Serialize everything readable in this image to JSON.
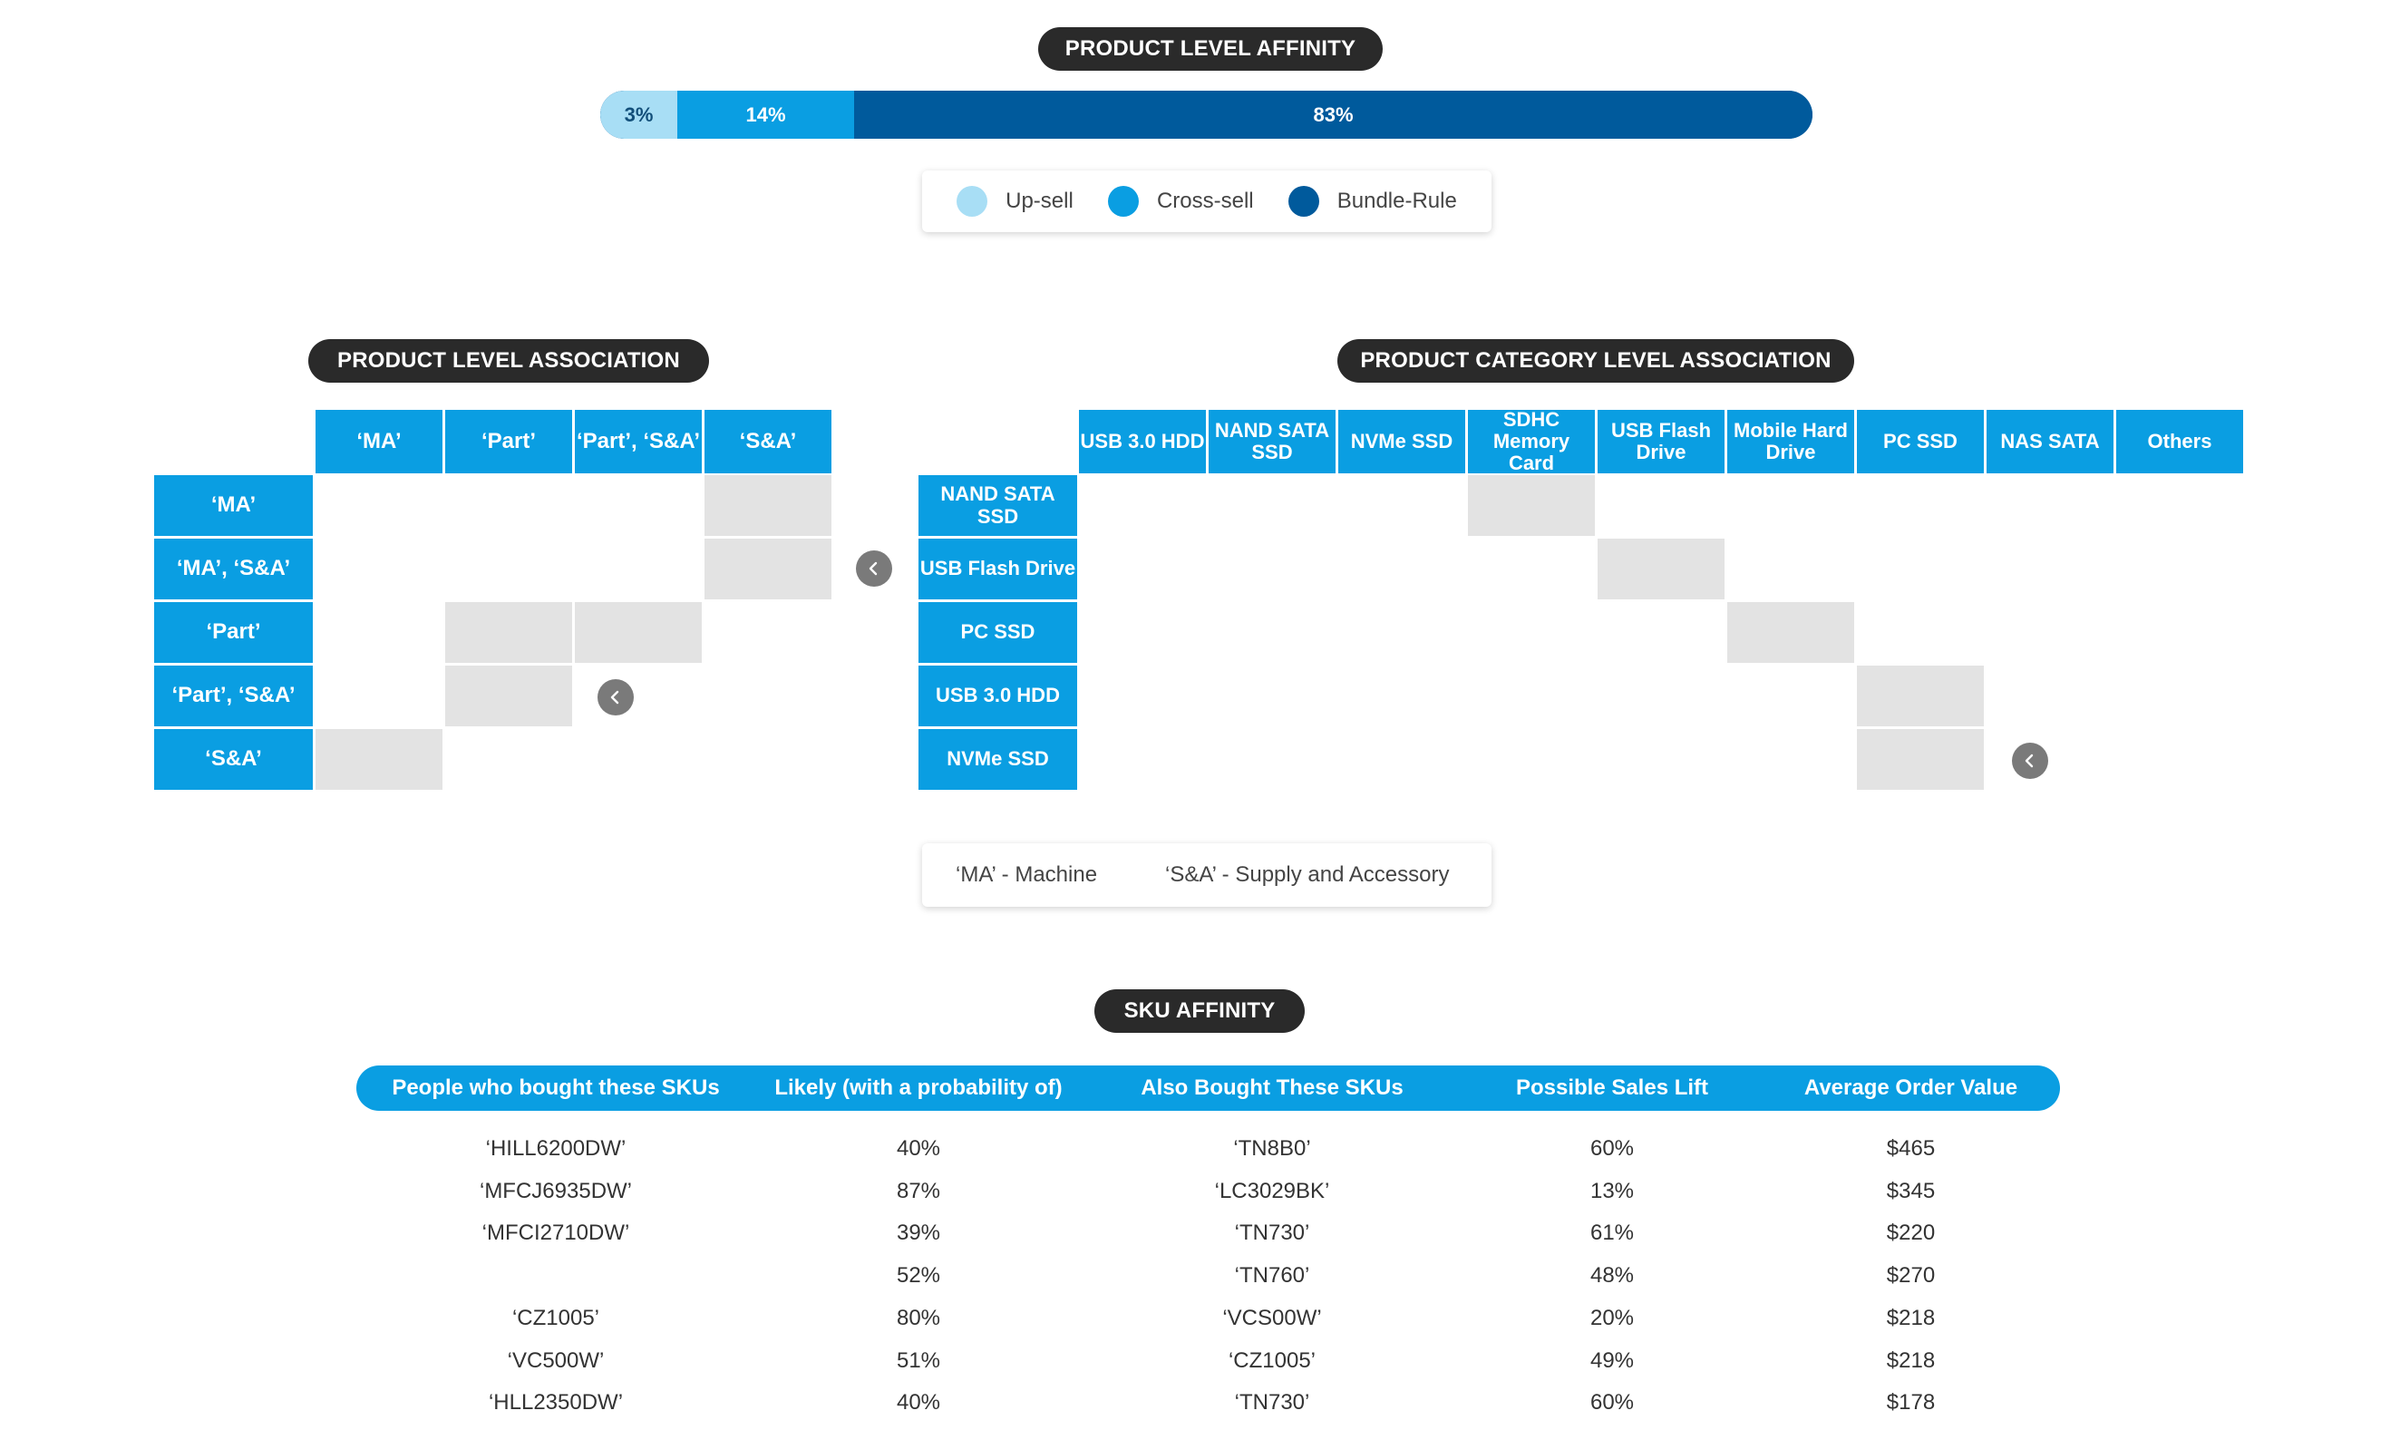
{
  "affinity": {
    "title": "PRODUCT LEVEL AFFINITY",
    "segments": [
      {
        "label": "3%",
        "value": 3,
        "color": "#a8def5"
      },
      {
        "label": "14%",
        "value": 14,
        "color": "#0a9ee2"
      },
      {
        "label": "83%",
        "value": 83,
        "color": "#005a9c"
      }
    ],
    "legend": [
      {
        "label": "Up-sell",
        "color": "#a8def5"
      },
      {
        "label": "Cross-sell",
        "color": "#0a9ee2"
      },
      {
        "label": "Bundle-Rule",
        "color": "#005a9c"
      }
    ]
  },
  "product_assoc": {
    "title": "PRODUCT LEVEL ASSOCIATION",
    "columns": [
      "‘MA’",
      "‘Part’",
      "‘Part’, ‘S&A’",
      "‘S&A’"
    ],
    "rows": [
      "‘MA’",
      "‘MA’, ‘S&A’",
      "‘Part’",
      "‘Part’, ‘S&A’",
      "‘S&A’"
    ],
    "filled": [
      [
        0,
        3
      ],
      [
        1,
        3
      ],
      [
        2,
        1
      ],
      [
        2,
        2
      ],
      [
        3,
        1
      ],
      [
        4,
        0
      ]
    ]
  },
  "category_assoc": {
    "title": "PRODUCT CATEGORY LEVEL ASSOCIATION",
    "columns": [
      "USB 3.0 HDD",
      "NAND SATA SSD",
      "NVMe SSD",
      "SDHC Memory Card",
      "USB Flash Drive",
      "Mobile Hard Drive",
      "PC SSD",
      "NAS SATA",
      "Others"
    ],
    "rows": [
      "NAND SATA SSD",
      "USB Flash Drive",
      "PC SSD",
      "USB 3.0 HDD",
      "NVMe SSD"
    ],
    "filled": [
      [
        0,
        3
      ],
      [
        1,
        4
      ],
      [
        2,
        5
      ],
      [
        3,
        6
      ],
      [
        4,
        6
      ]
    ]
  },
  "key": {
    "ma": "‘MA’ - Machine",
    "sa": "‘S&A’ - Supply and Accessory"
  },
  "sku": {
    "title": "SKU AFFINITY",
    "headers": [
      "People who bought these SKUs",
      "Likely (with a probability of)",
      "Also Bought These SKUs",
      "Possible Sales Lift",
      "Average Order Value"
    ],
    "rows": [
      [
        "‘HILL6200DW’",
        "40%",
        "‘TN8B0’",
        "60%",
        "$465"
      ],
      [
        "‘MFCJ6935DW’",
        "87%",
        "‘LC3029BK’",
        "13%",
        "$345"
      ],
      [
        "‘MFCI2710DW’",
        "39%",
        "‘TN730’",
        "61%",
        "$220"
      ],
      [
        "",
        "52%",
        "‘TN760’",
        "48%",
        "$270"
      ],
      [
        "‘CZ1005’",
        "80%",
        "‘VCS00W’",
        "20%",
        "$218"
      ],
      [
        "‘VC500W’",
        "51%",
        "‘CZ1005’",
        "49%",
        "$218"
      ],
      [
        "‘HLL2350DW’",
        "40%",
        "‘TN730’",
        "60%",
        "$178"
      ]
    ]
  }
}
